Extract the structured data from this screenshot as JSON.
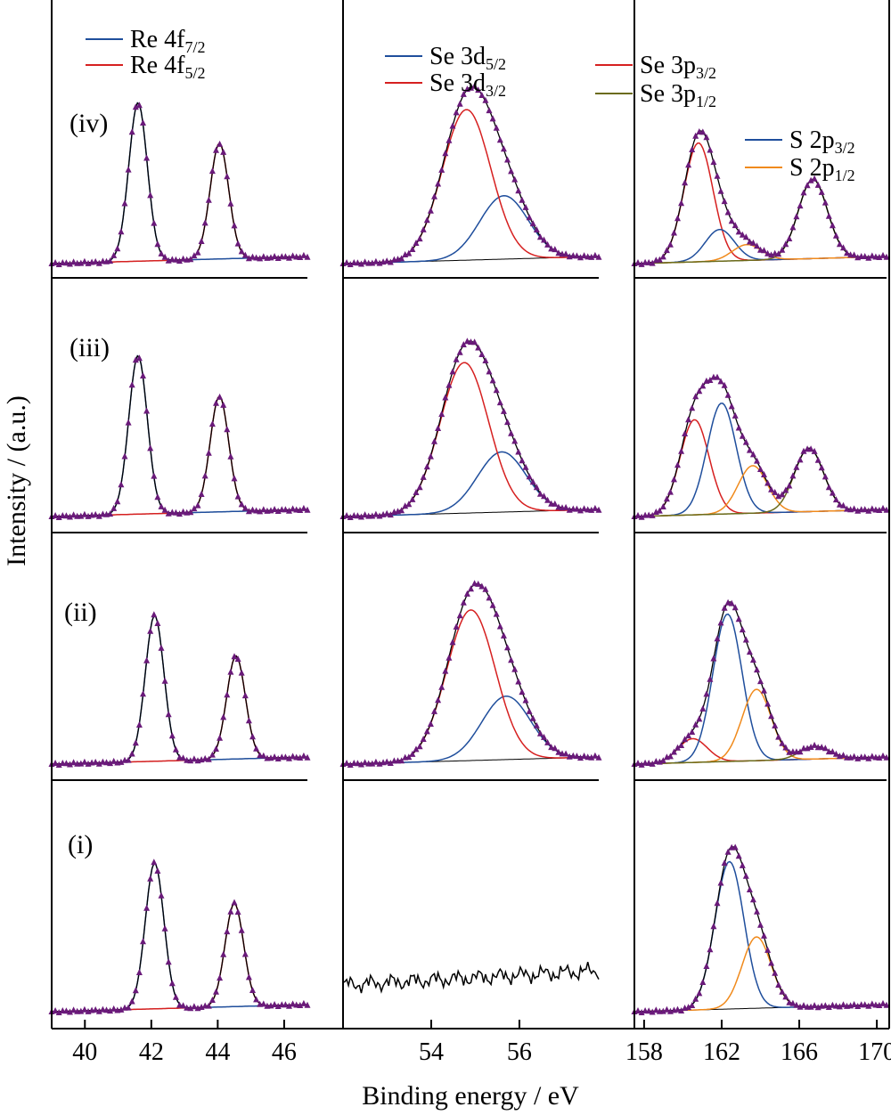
{
  "figure": {
    "ylabel": "Intensity / (a.u.)",
    "xlabel": "Binding energy / eV",
    "row_labels": [
      "(iv)",
      "(iii)",
      "(ii)",
      "(i)"
    ]
  },
  "legends": {
    "re": [
      {
        "base": "Re 4f",
        "sub": "7/2",
        "color": "#1f4e9c"
      },
      {
        "base": "Re 4f",
        "sub": "5/2",
        "color": "#d62020"
      }
    ],
    "se3d": [
      {
        "base": "Se 3d",
        "sub": "5/2",
        "color": "#1f4e9c"
      },
      {
        "base": "Se 3d",
        "sub": "3/2",
        "color": "#d62020"
      }
    ],
    "se3p": [
      {
        "base": "Se 3p",
        "sub": "3/2",
        "color": "#d62020"
      },
      {
        "base": "Se 3p",
        "sub": "1/2",
        "color": "#6b6b1a"
      }
    ],
    "s2p": [
      {
        "base": "S 2p",
        "sub": "3/2",
        "color": "#1f4e9c"
      },
      {
        "base": "S 2p",
        "sub": "1/2",
        "color": "#f08a1c"
      }
    ]
  },
  "colors": {
    "data_marker": "#6a1a7a",
    "envelope": "#000000",
    "background": "#000000"
  },
  "chart_data": [
    {
      "type": "line",
      "region": "Re 4f",
      "xlim": [
        39,
        46.7
      ],
      "xticks": [
        40,
        42,
        44,
        46
      ],
      "rows": [
        {
          "label": "(iv)",
          "peaks": [
            {
              "name": "Re 4f7/2",
              "x": 41.6,
              "height": 1.0,
              "color": "#1f4e9c"
            },
            {
              "name": "Re 4f5/2",
              "x": 44.05,
              "height": 0.73,
              "color": "#d62020"
            }
          ]
        },
        {
          "label": "(iii)",
          "peaks": [
            {
              "name": "Re 4f7/2",
              "x": 41.6,
              "height": 1.0,
              "color": "#1f4e9c"
            },
            {
              "name": "Re 4f5/2",
              "x": 44.05,
              "height": 0.73,
              "color": "#d62020"
            }
          ]
        },
        {
          "label": "(ii)",
          "peaks": [
            {
              "name": "Re 4f7/2",
              "x": 42.1,
              "height": 0.92,
              "color": "#1f4e9c"
            },
            {
              "name": "Re 4f5/2",
              "x": 44.55,
              "height": 0.65,
              "color": "#d62020"
            }
          ]
        },
        {
          "label": "(i)",
          "peaks": [
            {
              "name": "Re 4f7/2",
              "x": 42.1,
              "height": 0.92,
              "color": "#1f4e9c"
            },
            {
              "name": "Re 4f5/2",
              "x": 44.5,
              "height": 0.65,
              "color": "#d62020"
            }
          ]
        }
      ]
    },
    {
      "type": "line",
      "region": "Se 3d",
      "xlim": [
        52,
        57.8
      ],
      "xticks": [
        54,
        56
      ],
      "rows": [
        {
          "label": "(iv)",
          "peaks": [
            {
              "name": "Se 3d5/2",
              "x": 55.65,
              "height": 0.4,
              "color": "#1f4e9c"
            },
            {
              "name": "Se 3d3/2",
              "x": 54.8,
              "height": 0.95,
              "color": "#d62020"
            }
          ]
        },
        {
          "label": "(iii)",
          "peaks": [
            {
              "name": "Se 3d5/2",
              "x": 55.6,
              "height": 0.38,
              "color": "#1f4e9c"
            },
            {
              "name": "Se 3d3/2",
              "x": 54.75,
              "height": 0.95,
              "color": "#d62020"
            }
          ]
        },
        {
          "label": "(ii)",
          "peaks": [
            {
              "name": "Se 3d5/2",
              "x": 55.7,
              "height": 0.4,
              "color": "#1f4e9c"
            },
            {
              "name": "Se 3d3/2",
              "x": 54.9,
              "height": 0.95,
              "color": "#d62020"
            }
          ]
        },
        {
          "label": "(i)",
          "peaks": []
        }
      ]
    },
    {
      "type": "line",
      "region": "Se 3p / S 2p",
      "xlim": [
        157.5,
        170.5
      ],
      "xticks": [
        158,
        162,
        166,
        170
      ],
      "rows": [
        {
          "label": "(iv)",
          "peaks": [
            {
              "name": "Se 3p3/2",
              "x": 160.8,
              "height": 0.75,
              "color": "#d62020"
            },
            {
              "name": "S 2p3/2",
              "x": 161.9,
              "height": 0.2,
              "color": "#1f4e9c"
            },
            {
              "name": "S 2p1/2",
              "x": 163.3,
              "height": 0.1,
              "color": "#f08a1c"
            },
            {
              "name": "Se 3p1/2",
              "x": 166.7,
              "height": 0.5,
              "color": "#6b6b1a"
            }
          ]
        },
        {
          "label": "(iii)",
          "peaks": [
            {
              "name": "Se 3p3/2",
              "x": 160.6,
              "height": 0.6,
              "color": "#d62020"
            },
            {
              "name": "S 2p3/2",
              "x": 162.0,
              "height": 0.7,
              "color": "#1f4e9c"
            },
            {
              "name": "S 2p1/2",
              "x": 163.6,
              "height": 0.3,
              "color": "#f08a1c"
            },
            {
              "name": "Se 3p1/2",
              "x": 166.5,
              "height": 0.4,
              "color": "#6b6b1a"
            }
          ]
        },
        {
          "label": "(ii)",
          "peaks": [
            {
              "name": "Se 3p3/2",
              "x": 160.5,
              "height": 0.15,
              "color": "#d62020"
            },
            {
              "name": "S 2p3/2",
              "x": 162.3,
              "height": 0.93,
              "color": "#1f4e9c"
            },
            {
              "name": "S 2p1/2",
              "x": 163.8,
              "height": 0.45,
              "color": "#f08a1c"
            },
            {
              "name": "Se 3p1/2",
              "x": 166.8,
              "height": 0.08,
              "color": "#6b6b1a"
            }
          ]
        },
        {
          "label": "(i)",
          "peaks": [
            {
              "name": "S 2p3/2",
              "x": 162.4,
              "height": 0.93,
              "color": "#1f4e9c"
            },
            {
              "name": "S 2p1/2",
              "x": 163.8,
              "height": 0.45,
              "color": "#f08a1c"
            }
          ]
        }
      ]
    }
  ]
}
